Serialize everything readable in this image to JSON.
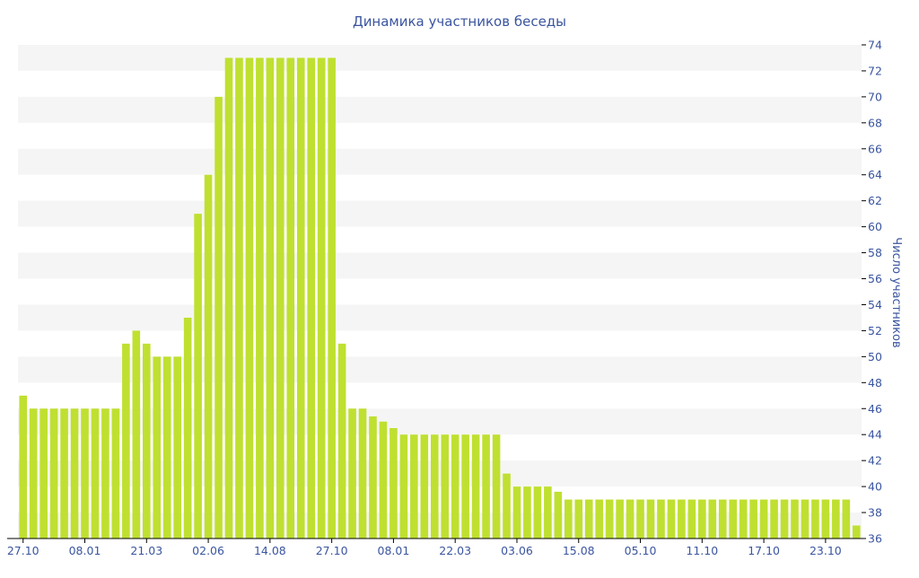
{
  "chart_data": {
    "type": "bar",
    "title": "Динамика участников беседы",
    "ylabel": "Число участников",
    "xlabel": "",
    "ylim": [
      36,
      74
    ],
    "y_ticks": [
      36,
      38,
      40,
      42,
      44,
      46,
      48,
      50,
      52,
      54,
      56,
      58,
      60,
      62,
      64,
      66,
      68,
      70,
      72,
      74
    ],
    "y_axis_side": "right",
    "grid": "horizontal alternating bands",
    "x_tick_labels": [
      "27.10",
      "08.01",
      "21.03",
      "02.06",
      "14.08",
      "27.10",
      "08.01",
      "22.03",
      "03.06",
      "15.08",
      "05.10",
      "11.10",
      "17.10",
      "23.10"
    ],
    "values": [
      47,
      46,
      46,
      46,
      46,
      46,
      46,
      46,
      46,
      46,
      51,
      52,
      51,
      50,
      50,
      50,
      53,
      61,
      64,
      70,
      73,
      73,
      73,
      73,
      73,
      73,
      73,
      73,
      73,
      73,
      73,
      51,
      46,
      46,
      45.4,
      45,
      44.5,
      44,
      44,
      44,
      44,
      44,
      44,
      44,
      44,
      44,
      44,
      41,
      40,
      40,
      40,
      40,
      39.6,
      39,
      39,
      39,
      39,
      39,
      39,
      39,
      39,
      39,
      39,
      39,
      39,
      39,
      39,
      39,
      39,
      39,
      39,
      39,
      39,
      39,
      39,
      39,
      39,
      39,
      39,
      39,
      39,
      37
    ],
    "colors": {
      "bar": "#bfe030",
      "band": "#f5f5f5",
      "text": "#3a559f"
    }
  }
}
